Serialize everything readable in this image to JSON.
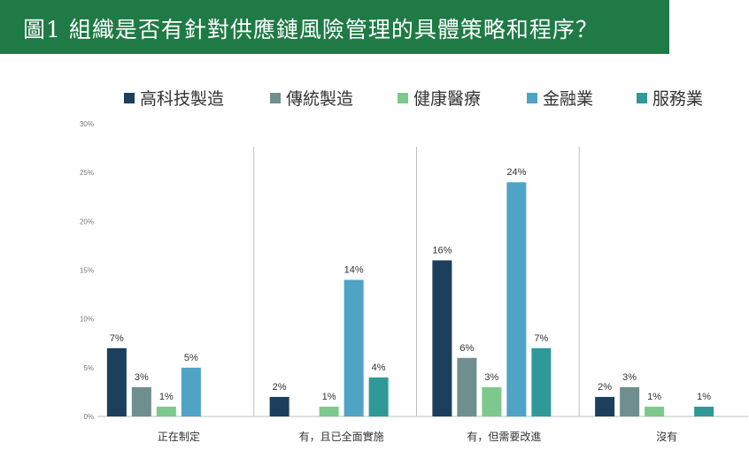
{
  "title": "圖1 組織是否有針對供應鏈風險管理的具體策略和程序？",
  "chart_data": {
    "type": "bar",
    "categories": [
      "正在制定",
      "有，且已全面實施",
      "有，但需要改進",
      "沒有"
    ],
    "series": [
      {
        "name": "高科技製造",
        "color": "#1b3f5c",
        "values": [
          7,
          2,
          16,
          2
        ],
        "labels": [
          "7%",
          "2%",
          "16%",
          "2%"
        ]
      },
      {
        "name": "傳統製造",
        "color": "#6f8f8e",
        "values": [
          3,
          0,
          6,
          3
        ],
        "labels": [
          "3%",
          "",
          "6%",
          "3%"
        ]
      },
      {
        "name": "健康醫療",
        "color": "#7dc98d",
        "values": [
          1,
          1,
          3,
          1
        ],
        "labels": [
          "1%",
          "1%",
          "3%",
          "1%"
        ]
      },
      {
        "name": "金融業",
        "color": "#4fa3c4",
        "values": [
          5,
          14,
          24,
          0
        ],
        "labels": [
          "5%",
          "14%",
          "24%",
          ""
        ]
      },
      {
        "name": "服務業",
        "color": "#2f9999",
        "values": [
          0,
          4,
          7,
          1
        ],
        "labels": [
          "",
          "4%",
          "7%",
          "1%"
        ]
      }
    ],
    "yticks": [
      "0%",
      "5%",
      "10%",
      "15%",
      "20%",
      "25%",
      "30%"
    ],
    "ylim": [
      0,
      30
    ],
    "legend": "top",
    "grid": false
  }
}
